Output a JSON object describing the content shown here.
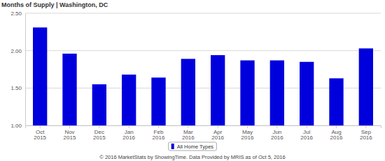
{
  "chart_data": {
    "type": "bar",
    "title": "Months of Supply | Washington, DC",
    "categories": [
      "Oct 2015",
      "Nov 2015",
      "Dec 2015",
      "Jan 2016",
      "Feb 2016",
      "Mar 2016",
      "Apr 2016",
      "May 2016",
      "Jun 2016",
      "Jul 2016",
      "Aug 2016",
      "Sep 2016"
    ],
    "series": [
      {
        "name": "All Home Types",
        "color": "#0000dd",
        "values": [
          2.31,
          1.96,
          1.55,
          1.68,
          1.64,
          1.89,
          1.94,
          1.87,
          1.87,
          1.85,
          1.63,
          2.03
        ]
      }
    ],
    "ylim": [
      1,
      2.5
    ],
    "yticks": [
      {
        "value": 1,
        "label": "1.00"
      },
      {
        "value": 1.5,
        "label": "1.50"
      },
      {
        "value": 2,
        "label": "2.00"
      },
      {
        "value": 2.5,
        "label": "2.50"
      }
    ],
    "grid": true,
    "legend": "bottom",
    "annotations": [
      "© 2016 MarketStats by ShowingTime. Data Provided by MRIS as of Oct 5, 2016"
    ]
  }
}
